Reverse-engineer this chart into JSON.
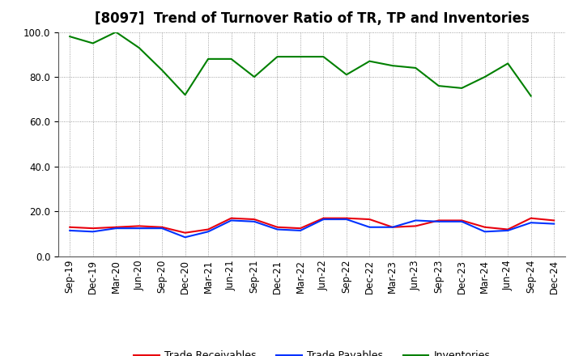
{
  "title": "[8097]  Trend of Turnover Ratio of TR, TP and Inventories",
  "x_labels": [
    "Sep-19",
    "Dec-19",
    "Mar-20",
    "Jun-20",
    "Sep-20",
    "Dec-20",
    "Mar-21",
    "Jun-21",
    "Sep-21",
    "Dec-21",
    "Mar-22",
    "Jun-22",
    "Sep-22",
    "Dec-22",
    "Mar-23",
    "Jun-23",
    "Sep-23",
    "Dec-23",
    "Mar-24",
    "Jun-24",
    "Sep-24",
    "Dec-24"
  ],
  "trade_receivables": [
    13.0,
    12.5,
    13.0,
    13.5,
    13.0,
    10.5,
    12.0,
    17.0,
    16.5,
    13.0,
    12.5,
    17.0,
    17.0,
    16.5,
    13.0,
    13.5,
    16.0,
    16.0,
    13.0,
    12.0,
    17.0,
    16.0
  ],
  "trade_payables": [
    11.5,
    11.0,
    12.5,
    12.5,
    12.5,
    8.5,
    11.0,
    16.0,
    15.5,
    12.0,
    11.5,
    16.5,
    16.5,
    13.0,
    13.0,
    16.0,
    15.5,
    15.5,
    11.0,
    11.5,
    15.0,
    14.5
  ],
  "inventories": [
    98.0,
    95.0,
    100.0,
    93.0,
    83.0,
    72.0,
    88.0,
    88.0,
    80.0,
    89.0,
    89.0,
    89.0,
    81.0,
    87.0,
    85.0,
    84.0,
    76.0,
    75.0,
    80.0,
    86.0,
    71.5,
    null
  ],
  "color_tr": "#e8000d",
  "color_tp": "#0032ff",
  "color_inv": "#008000",
  "ylim": [
    0.0,
    100.0
  ],
  "yticks": [
    0.0,
    20.0,
    40.0,
    60.0,
    80.0,
    100.0
  ],
  "legend_labels": [
    "Trade Receivables",
    "Trade Payables",
    "Inventories"
  ],
  "background_color": "#ffffff",
  "plot_bg_color": "#ffffff",
  "title_fontsize": 12,
  "tick_fontsize": 8.5,
  "linewidth": 1.5
}
